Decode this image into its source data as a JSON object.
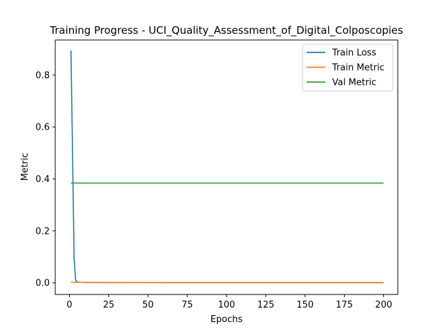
{
  "chart_data": {
    "type": "line",
    "title": "Training Progress - UCI_Quality_Assessment_of_Digital_Colposcopies",
    "xlabel": "Epochs",
    "ylabel": "Metric",
    "xlim": [
      -9,
      209
    ],
    "ylim": [
      -0.045,
      0.935
    ],
    "xticks": [
      0,
      25,
      50,
      75,
      100,
      125,
      150,
      175,
      200
    ],
    "yticks": [
      0.0,
      0.2,
      0.4,
      0.6,
      0.8
    ],
    "ytick_labels": [
      "0.0",
      "0.2",
      "0.4",
      "0.6",
      "0.8"
    ],
    "grid": false,
    "legend_position": "top-right",
    "series": [
      {
        "name": "Train Loss",
        "color": "#1f77b4",
        "points": [
          [
            1,
            0.895
          ],
          [
            2,
            0.5
          ],
          [
            3,
            0.09
          ],
          [
            4,
            0.01
          ],
          [
            5,
            0.003
          ],
          [
            10,
            0.001
          ],
          [
            50,
            0.0005
          ],
          [
            100,
            0.0003
          ],
          [
            150,
            0.0002
          ],
          [
            200,
            0.0002
          ]
        ]
      },
      {
        "name": "Train Metric",
        "color": "#ff7f0e",
        "points": [
          [
            1,
            0.002
          ],
          [
            50,
            0.001
          ],
          [
            100,
            0.001
          ],
          [
            150,
            0.001
          ],
          [
            200,
            0.001
          ]
        ]
      },
      {
        "name": "Val Metric",
        "color": "#2ca02c",
        "points": [
          [
            1,
            0.384
          ],
          [
            50,
            0.384
          ],
          [
            100,
            0.384
          ],
          [
            150,
            0.384
          ],
          [
            200,
            0.384
          ]
        ]
      }
    ]
  }
}
